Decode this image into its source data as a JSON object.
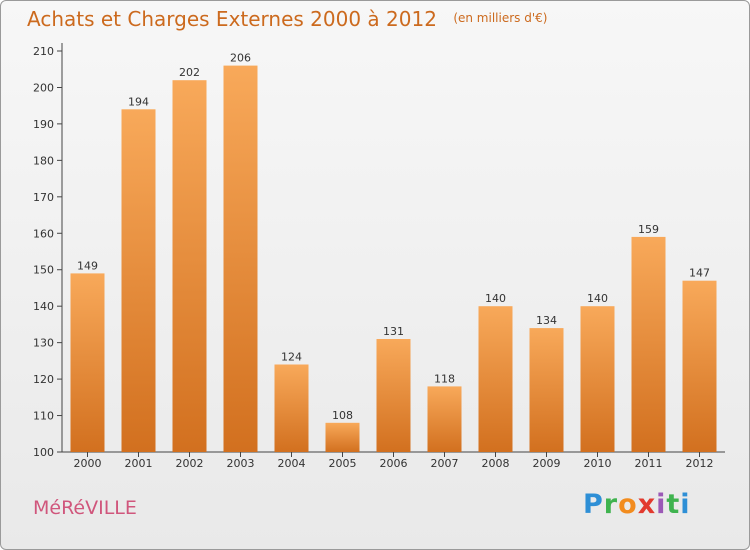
{
  "title": "Achats et Charges Externes 2000 à 2012",
  "unit": "(en milliers d'€)",
  "town": "MéRéVILLE",
  "brand": {
    "letters": [
      "P",
      "r",
      "o",
      "x",
      "i",
      "t",
      "i"
    ],
    "colors": [
      "#2e8fd6",
      "#3fb34f",
      "#f28c1e",
      "#e23a2e",
      "#9b59b6",
      "#3fb34f",
      "#2e8fd6"
    ]
  },
  "colors": {
    "bar_top": "#f8a95a",
    "bar_bottom": "#d2701f",
    "title": "#cc6a1e",
    "town": "#d0567c"
  },
  "chart_data": {
    "type": "bar",
    "categories": [
      "2000",
      "2001",
      "2002",
      "2003",
      "2004",
      "2005",
      "2006",
      "2007",
      "2008",
      "2009",
      "2010",
      "2011",
      "2012"
    ],
    "values": [
      149,
      194,
      202,
      206,
      124,
      108,
      131,
      118,
      140,
      134,
      140,
      159,
      147
    ],
    "title": "Achats et Charges Externes 2000 à 2012",
    "ylim": [
      100,
      210
    ],
    "yticks": [
      100,
      110,
      120,
      130,
      140,
      150,
      160,
      170,
      180,
      190,
      200,
      210
    ],
    "grid": false,
    "legend": "none"
  }
}
